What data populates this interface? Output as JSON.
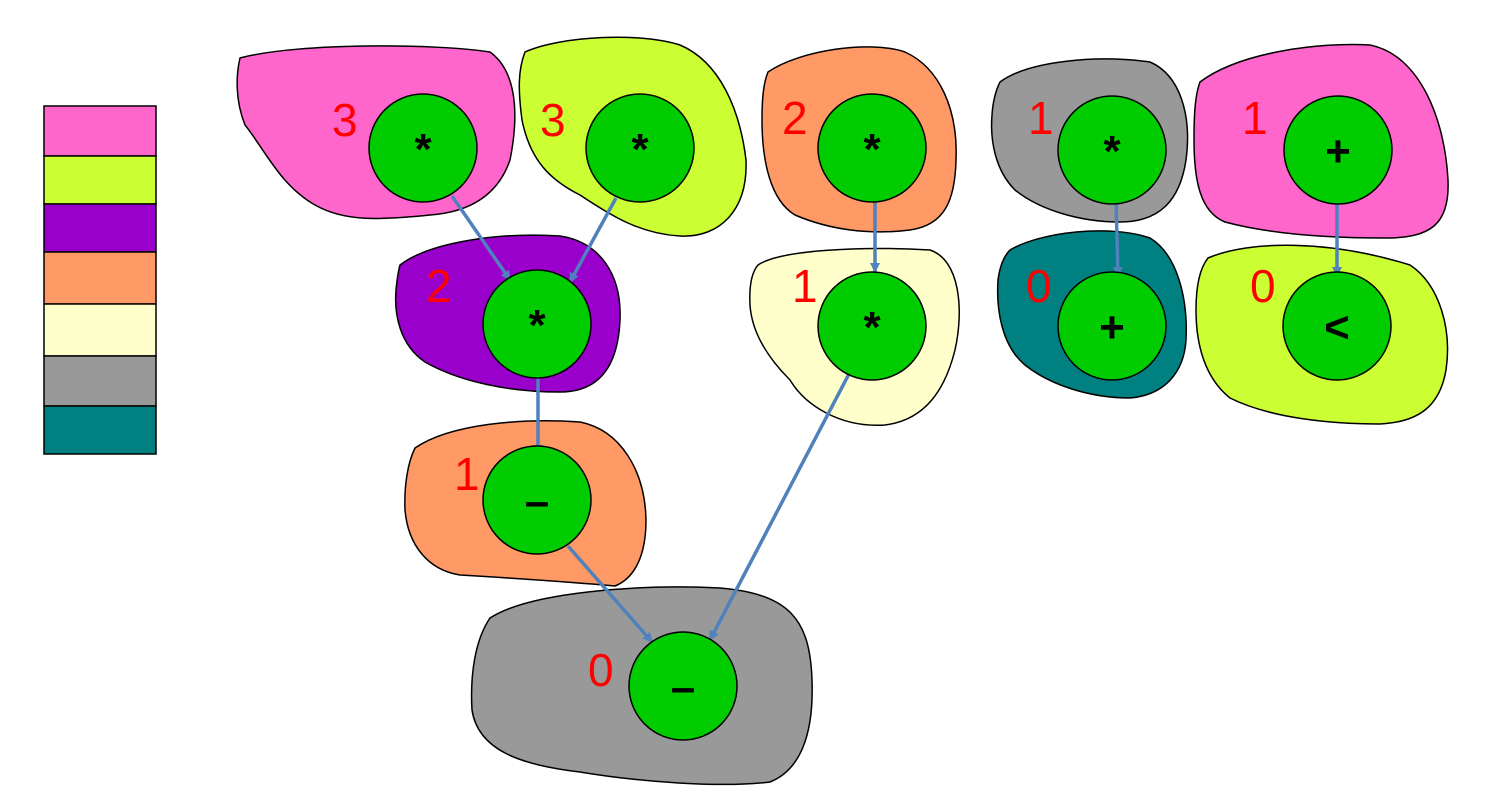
{
  "legend": {
    "colors": [
      "#ff66cc",
      "#ccff33",
      "#9900cc",
      "#ff9966",
      "#ffffcc",
      "#999999",
      "#008080"
    ]
  },
  "diagram": {
    "node_fill": "#00cc00",
    "edge_color": "#4f81bd",
    "level_color": "#ff0000",
    "nodes": [
      {
        "id": "n1",
        "op": "*",
        "level": "3",
        "region_color": "#ff66cc"
      },
      {
        "id": "n2",
        "op": "*",
        "level": "3",
        "region_color": "#ccff33"
      },
      {
        "id": "n3",
        "op": "*",
        "level": "2",
        "region_color": "#ff9966"
      },
      {
        "id": "n4",
        "op": "*",
        "level": "1",
        "region_color": "#999999"
      },
      {
        "id": "n5",
        "op": "+",
        "level": "1",
        "region_color": "#ff66cc"
      },
      {
        "id": "n6",
        "op": "*",
        "level": "2",
        "region_color": "#9900cc"
      },
      {
        "id": "n7",
        "op": "*",
        "level": "1",
        "region_color": "#ffffcc"
      },
      {
        "id": "n8",
        "op": "+",
        "level": "0",
        "region_color": "#008080"
      },
      {
        "id": "n9",
        "op": "<",
        "level": "0",
        "region_color": "#ccff33"
      },
      {
        "id": "n10",
        "op": "–",
        "level": "1",
        "region_color": "#ff9966"
      },
      {
        "id": "n11",
        "op": "–",
        "level": "0",
        "region_color": "#999999"
      }
    ],
    "edges": [
      {
        "from": "n1",
        "to": "n6"
      },
      {
        "from": "n2",
        "to": "n6"
      },
      {
        "from": "n3",
        "to": "n7"
      },
      {
        "from": "n4",
        "to": "n8"
      },
      {
        "from": "n5",
        "to": "n9"
      },
      {
        "from": "n6",
        "to": "n10"
      },
      {
        "from": "n10",
        "to": "n11"
      },
      {
        "from": "n7",
        "to": "n11"
      }
    ]
  }
}
